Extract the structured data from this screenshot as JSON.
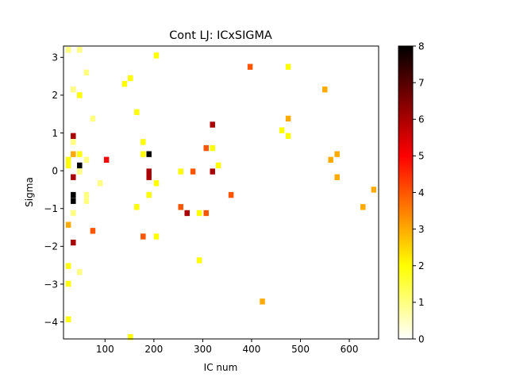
{
  "chart_data": {
    "type": "heatmap",
    "title": "Cont LJ: ICxSIGMA",
    "xlabel": "IC num",
    "ylabel": "Sigma",
    "xlim": [
      15,
      660
    ],
    "ylim": [
      -4.45,
      3.3
    ],
    "x_ticks": [
      100,
      200,
      300,
      400,
      500,
      600
    ],
    "y_ticks": [
      -4,
      -3,
      -2,
      -1,
      0,
      1,
      2,
      3
    ],
    "colorbar": {
      "min": 0,
      "max": 8,
      "ticks": [
        0,
        1,
        2,
        3,
        4,
        5,
        6,
        7,
        8
      ],
      "colormap": "hot_r"
    },
    "cell_size": {
      "x": 10.5,
      "y": 0.155
    },
    "cells": [
      {
        "x": 25,
        "y": 3.2,
        "v": 1.0
      },
      {
        "x": 48,
        "y": 3.2,
        "v": 1.0
      },
      {
        "x": 205,
        "y": 3.05,
        "v": 2.0
      },
      {
        "x": 397,
        "y": 2.75,
        "v": 4.0
      },
      {
        "x": 475,
        "y": 2.75,
        "v": 2.0
      },
      {
        "x": 62,
        "y": 2.6,
        "v": 1.0
      },
      {
        "x": 152,
        "y": 2.45,
        "v": 2.0
      },
      {
        "x": 140,
        "y": 2.3,
        "v": 2.0
      },
      {
        "x": 35,
        "y": 2.15,
        "v": 1.0
      },
      {
        "x": 550,
        "y": 2.15,
        "v": 3.0
      },
      {
        "x": 48,
        "y": 2.0,
        "v": 2.0
      },
      {
        "x": 165,
        "y": 1.55,
        "v": 2.0
      },
      {
        "x": 75,
        "y": 1.38,
        "v": 1.0
      },
      {
        "x": 475,
        "y": 1.38,
        "v": 3.0
      },
      {
        "x": 320,
        "y": 1.22,
        "v": 6.0
      },
      {
        "x": 462,
        "y": 1.07,
        "v": 2.0
      },
      {
        "x": 35,
        "y": 0.92,
        "v": 6.0
      },
      {
        "x": 475,
        "y": 0.92,
        "v": 2.0
      },
      {
        "x": 35,
        "y": 0.76,
        "v": 1.0
      },
      {
        "x": 178,
        "y": 0.76,
        "v": 2.0
      },
      {
        "x": 307,
        "y": 0.6,
        "v": 4.0
      },
      {
        "x": 320,
        "y": 0.6,
        "v": 2.0
      },
      {
        "x": 35,
        "y": 0.44,
        "v": 3.0
      },
      {
        "x": 48,
        "y": 0.44,
        "v": 2.0
      },
      {
        "x": 178,
        "y": 0.44,
        "v": 2.0
      },
      {
        "x": 190,
        "y": 0.44,
        "v": 8.0
      },
      {
        "x": 575,
        "y": 0.44,
        "v": 3.0
      },
      {
        "x": 25,
        "y": 0.29,
        "v": 2.0
      },
      {
        "x": 62,
        "y": 0.29,
        "v": 1.0
      },
      {
        "x": 103,
        "y": 0.29,
        "v": 5.0
      },
      {
        "x": 562,
        "y": 0.29,
        "v": 3.0
      },
      {
        "x": 25,
        "y": 0.14,
        "v": 2.0
      },
      {
        "x": 48,
        "y": 0.14,
        "v": 8.0
      },
      {
        "x": 332,
        "y": 0.14,
        "v": 2.0
      },
      {
        "x": 48,
        "y": -0.02,
        "v": 1.0
      },
      {
        "x": 190,
        "y": -0.02,
        "v": 6.0
      },
      {
        "x": 255,
        "y": -0.02,
        "v": 2.0
      },
      {
        "x": 280,
        "y": -0.02,
        "v": 4.0
      },
      {
        "x": 320,
        "y": -0.02,
        "v": 6.0
      },
      {
        "x": 35,
        "y": -0.17,
        "v": 6.0
      },
      {
        "x": 190,
        "y": -0.17,
        "v": 6.0
      },
      {
        "x": 575,
        "y": -0.17,
        "v": 3.0
      },
      {
        "x": 90,
        "y": -0.33,
        "v": 1.0
      },
      {
        "x": 205,
        "y": -0.33,
        "v": 2.0
      },
      {
        "x": 650,
        "y": -0.5,
        "v": 3.0
      },
      {
        "x": 35,
        "y": -0.64,
        "v": 8.0
      },
      {
        "x": 62,
        "y": -0.64,
        "v": 1.0
      },
      {
        "x": 190,
        "y": -0.64,
        "v": 2.0
      },
      {
        "x": 358,
        "y": -0.64,
        "v": 4.0
      },
      {
        "x": 35,
        "y": -0.8,
        "v": 8.0
      },
      {
        "x": 62,
        "y": -0.8,
        "v": 1.0
      },
      {
        "x": 165,
        "y": -0.96,
        "v": 2.0
      },
      {
        "x": 255,
        "y": -0.96,
        "v": 4.0
      },
      {
        "x": 628,
        "y": -0.96,
        "v": 3.0
      },
      {
        "x": 35,
        "y": -1.12,
        "v": 1.0
      },
      {
        "x": 268,
        "y": -1.12,
        "v": 6.0
      },
      {
        "x": 293,
        "y": -1.12,
        "v": 2.0
      },
      {
        "x": 307,
        "y": -1.12,
        "v": 4.0
      },
      {
        "x": 25,
        "y": -1.43,
        "v": 3.0
      },
      {
        "x": 75,
        "y": -1.59,
        "v": 4.0
      },
      {
        "x": 178,
        "y": -1.74,
        "v": 4.0
      },
      {
        "x": 205,
        "y": -1.74,
        "v": 2.0
      },
      {
        "x": 35,
        "y": -1.9,
        "v": 6.0
      },
      {
        "x": 293,
        "y": -2.37,
        "v": 2.0
      },
      {
        "x": 25,
        "y": -2.52,
        "v": 2.0
      },
      {
        "x": 48,
        "y": -2.68,
        "v": 1.0
      },
      {
        "x": 25,
        "y": -2.99,
        "v": 2.0
      },
      {
        "x": 422,
        "y": -3.46,
        "v": 3.0
      },
      {
        "x": 25,
        "y": -3.93,
        "v": 2.0
      },
      {
        "x": 152,
        "y": -4.4,
        "v": 2.0
      }
    ]
  }
}
